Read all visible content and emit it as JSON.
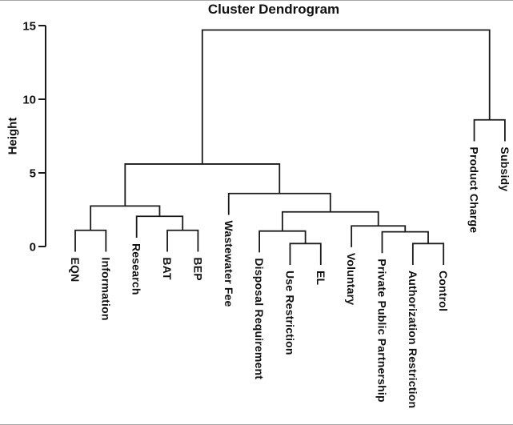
{
  "figure": {
    "title": "Cluster Dendrogram",
    "ylabel": "Height"
  },
  "chart_data": {
    "type": "dendrogram",
    "title": "Cluster Dendrogram",
    "ylabel": "Height",
    "ylim": [
      0,
      15
    ],
    "yticks": [
      0,
      5,
      10,
      15
    ],
    "grid": false,
    "line_color": "#1a1a1a",
    "text_color": "#111111",
    "leaves": [
      "EQN",
      "Information",
      "Research",
      "BAT",
      "BEP",
      "Wastewater Fee",
      "Disposal Requirement",
      "Use Restriction",
      "EL",
      "Voluntary",
      "Private Public Partnership",
      "Authorization Restriction",
      "Control",
      "Product Charge",
      "Subsidy"
    ],
    "leaf_hang": 1.45,
    "merges": [
      {
        "id": "m1",
        "children": [
          "EQN",
          "Information"
        ],
        "height": 1.1
      },
      {
        "id": "m2",
        "children": [
          "BAT",
          "BEP"
        ],
        "height": 1.1
      },
      {
        "id": "m3",
        "children": [
          "Research",
          "m2"
        ],
        "height": 2.05
      },
      {
        "id": "m4",
        "children": [
          "m1",
          "m3"
        ],
        "height": 2.75
      },
      {
        "id": "m5",
        "children": [
          "Use Restriction",
          "EL"
        ],
        "height": 0.2
      },
      {
        "id": "m6",
        "children": [
          "Disposal Requirement",
          "m5"
        ],
        "height": 1.05
      },
      {
        "id": "m7",
        "children": [
          "Authorization Restriction",
          "Control"
        ],
        "height": 0.2
      },
      {
        "id": "m8",
        "children": [
          "Private Public Partnership",
          "m7"
        ],
        "height": 1.0
      },
      {
        "id": "m9",
        "children": [
          "Voluntary",
          "m8"
        ],
        "height": 1.4
      },
      {
        "id": "m10",
        "children": [
          "m6",
          "m9"
        ],
        "height": 2.35
      },
      {
        "id": "m11",
        "children": [
          "Wastewater Fee",
          "m10"
        ],
        "height": 3.6
      },
      {
        "id": "m12",
        "children": [
          "m4",
          "m11"
        ],
        "height": 5.6
      },
      {
        "id": "m13",
        "children": [
          "Product Charge",
          "Subsidy"
        ],
        "height": 8.6
      },
      {
        "id": "m14",
        "children": [
          "m12",
          "m13"
        ],
        "height": 14.7
      }
    ]
  }
}
